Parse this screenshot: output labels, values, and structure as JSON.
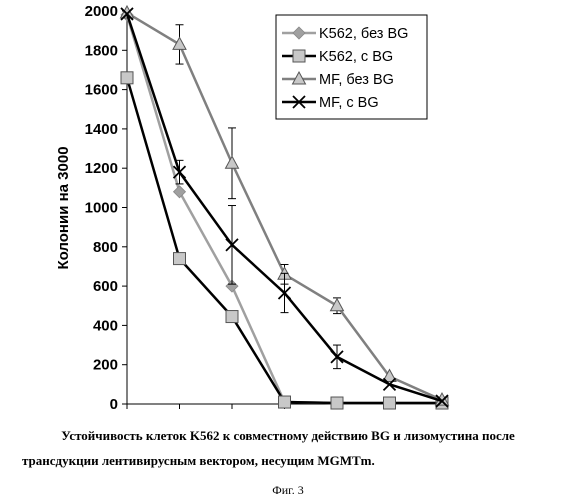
{
  "chart_data": {
    "type": "line",
    "ylabel": "Колонии на 3000",
    "xlabel": "",
    "ylim": [
      0,
      2000
    ],
    "yticks": [
      0,
      200,
      400,
      600,
      800,
      1000,
      1200,
      1400,
      1600,
      1800,
      2000
    ],
    "x": [
      0,
      1,
      2,
      3,
      4,
      5,
      6
    ],
    "legend_position": "top-right",
    "grid": false,
    "series": [
      {
        "name": "K562, без BG",
        "marker": "diamond",
        "color": "#a0a0a0",
        "values": [
          1980,
          1080,
          600,
          10,
          5,
          5,
          5
        ]
      },
      {
        "name": "K562, с BG",
        "marker": "square",
        "color": "#000000",
        "values": [
          1660,
          740,
          445,
          10,
          5,
          5,
          5
        ]
      },
      {
        "name": "MF, без BG",
        "marker": "triangle",
        "color": "#808080",
        "values": [
          1990,
          1830,
          1225,
          660,
          500,
          140,
          20
        ],
        "errors": [
          0,
          100,
          180,
          50,
          40,
          0,
          0
        ]
      },
      {
        "name": "MF, с BG",
        "marker": "cross",
        "color": "#000000",
        "values": [
          1985,
          1180,
          810,
          565,
          240,
          100,
          15
        ],
        "errors": [
          0,
          60,
          200,
          100,
          60,
          0,
          0
        ]
      }
    ]
  },
  "caption": {
    "line1": "Устойчивость клеток K562 к совместному действию BG и лизомустина после",
    "line2": "трансдукции лентивирусным вектором, несущим MGMTm.",
    "figure": "Фиг. 3"
  }
}
